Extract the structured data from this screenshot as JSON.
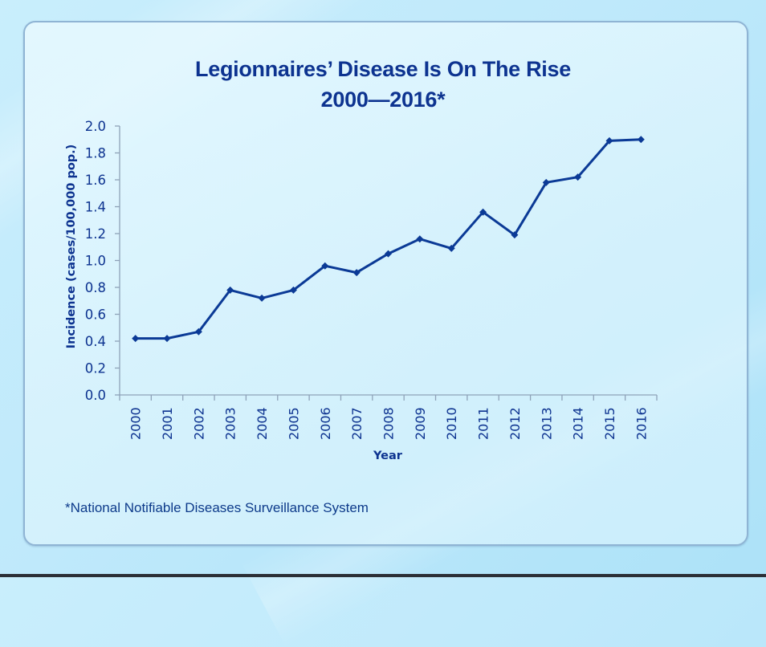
{
  "slide": {
    "title_line1": "Legionnaires’ Disease Is On The Rise",
    "title_line2": "2000—2016*",
    "footnote": "*National Notifiable Diseases Surveillance System"
  },
  "colors": {
    "text": "#0d3390",
    "line": "#0b3a96",
    "axis": "#8ea2b8"
  },
  "chart_data": {
    "type": "line",
    "title": "Legionnaires’ Disease Is On The Rise 2000—2016*",
    "xlabel": "Year",
    "ylabel": "Incidence (cases/100,000 pop.)",
    "categories": [
      "2000",
      "2001",
      "2002",
      "2003",
      "2004",
      "2005",
      "2006",
      "2007",
      "2008",
      "2009",
      "2010",
      "2011",
      "2012",
      "2013",
      "2014",
      "2015",
      "2016"
    ],
    "series": [
      {
        "name": "Incidence",
        "marker": "diamond",
        "values": [
          0.42,
          0.42,
          0.47,
          0.78,
          0.72,
          0.78,
          0.96,
          0.91,
          1.05,
          1.16,
          1.09,
          1.36,
          1.19,
          1.58,
          1.62,
          1.89,
          1.9
        ]
      }
    ],
    "ylim": [
      0,
      2.0
    ],
    "yticks": [
      "0.0",
      "0.2",
      "0.4",
      "0.6",
      "0.8",
      "1.0",
      "1.2",
      "1.4",
      "1.6",
      "1.8",
      "2.0"
    ],
    "ytick_values": [
      0,
      0.2,
      0.4,
      0.6,
      0.8,
      1.0,
      1.2,
      1.4,
      1.6,
      1.8,
      2.0
    ],
    "grid": false,
    "legend": "none"
  }
}
